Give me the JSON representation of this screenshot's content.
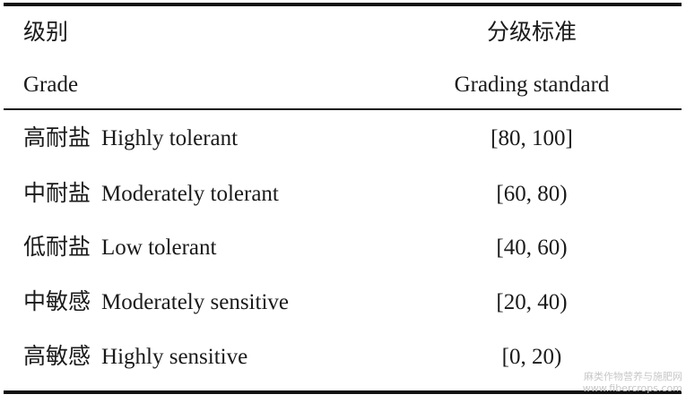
{
  "table": {
    "headers": [
      {
        "zh": "级别",
        "en": "Grade"
      },
      {
        "zh": "分级标准",
        "en": "Grading standard"
      }
    ],
    "rows": [
      {
        "grade_zh": "高耐盐",
        "grade_en": "Highly tolerant",
        "standard": "[80, 100]"
      },
      {
        "grade_zh": "中耐盐",
        "grade_en": "Moderately tolerant",
        "standard": "[60, 80)"
      },
      {
        "grade_zh": "低耐盐",
        "grade_en": "Low tolerant",
        "standard": "[40, 60)"
      },
      {
        "grade_zh": "中敏感",
        "grade_en": "Moderately sensitive",
        "standard": "[20, 40)"
      },
      {
        "grade_zh": "高敏感",
        "grade_en": "Highly sensitive",
        "standard": "[0, 20)"
      }
    ]
  },
  "watermark": {
    "line1": "麻类作物营养与施肥网",
    "line2": "www.fibercrops.com"
  }
}
